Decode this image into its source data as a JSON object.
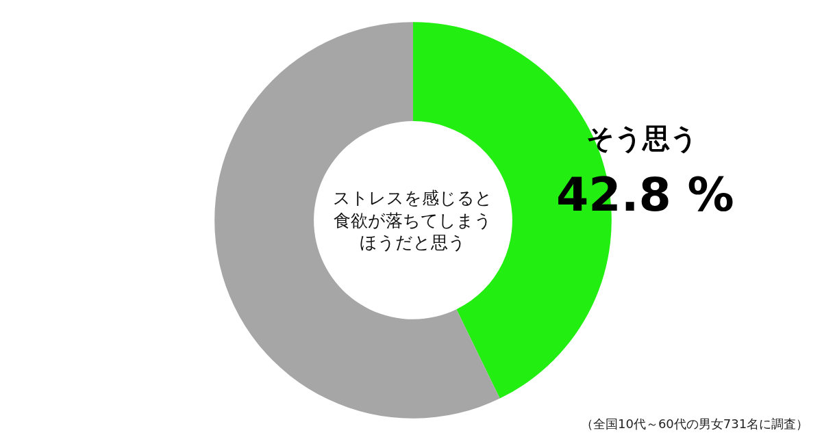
{
  "chart_data": {
    "type": "donut",
    "title": "ストレスを感じると食欲が落ちてしまうほうだと思う",
    "categories": [
      "そう思う",
      null
    ],
    "values": [
      42.8,
      57.2
    ],
    "colors": [
      "#22ee11",
      "#a6a6a6"
    ],
    "value_labels": [
      "42.8 %",
      null
    ],
    "annotations": [
      "（全国10代～60代の男女731名に調査）"
    ],
    "legend": false
  }
}
